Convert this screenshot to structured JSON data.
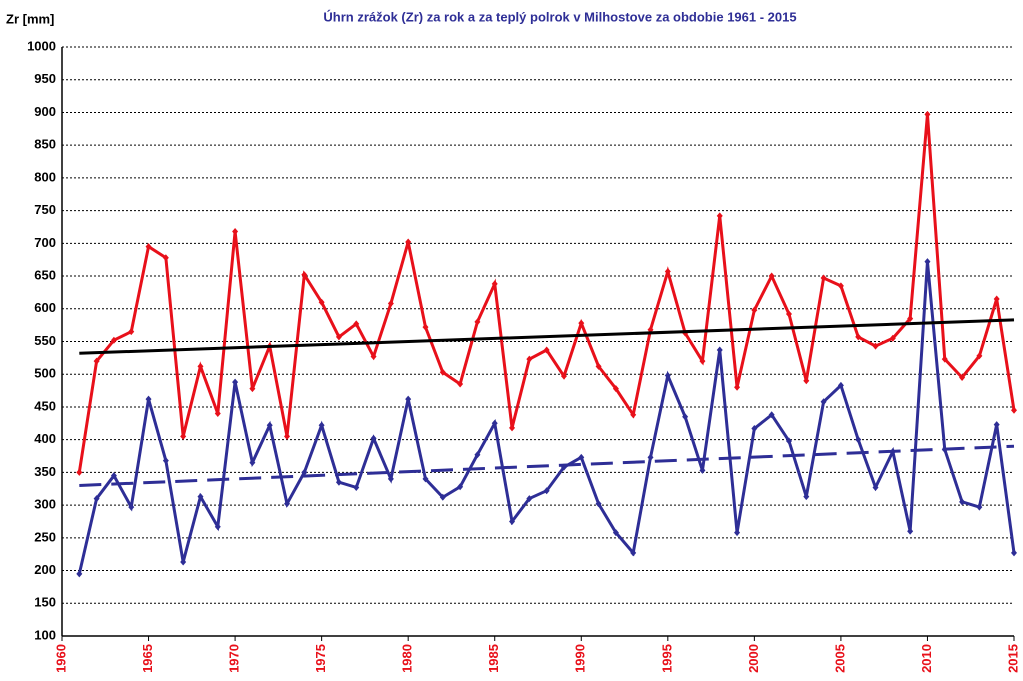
{
  "chart_data": {
    "type": "line",
    "title": "Úhrn zrážok (Zr) za rok a za teplý polrok v Milhostove za obdobie 1961 - 2015",
    "y_label": "Zr [mm]",
    "x": [
      1961,
      1962,
      1963,
      1964,
      1965,
      1966,
      1967,
      1968,
      1969,
      1970,
      1971,
      1972,
      1973,
      1974,
      1975,
      1976,
      1977,
      1978,
      1979,
      1980,
      1981,
      1982,
      1983,
      1984,
      1985,
      1986,
      1987,
      1988,
      1989,
      1990,
      1991,
      1992,
      1993,
      1994,
      1995,
      1996,
      1997,
      1998,
      1999,
      2000,
      2001,
      2002,
      2003,
      2004,
      2005,
      2006,
      2007,
      2008,
      2009,
      2010,
      2011,
      2012,
      2013,
      2014,
      2015
    ],
    "series": [
      {
        "color": "#e8101a",
        "marker": true,
        "dash": false,
        "values": [
          350,
          520,
          552,
          565,
          695,
          678,
          405,
          512,
          440,
          718,
          478,
          543,
          405,
          652,
          610,
          557,
          577,
          527,
          608,
          702,
          572,
          503,
          485,
          580,
          638,
          418,
          523,
          537,
          497,
          578,
          512,
          478,
          438,
          568,
          657,
          563,
          520,
          742,
          480,
          598,
          650,
          592,
          490,
          647,
          635,
          557,
          543,
          555,
          585,
          897,
          523,
          495,
          528,
          615,
          445
        ]
      },
      {
        "color": "#2e2e96",
        "marker": true,
        "dash": false,
        "values": [
          195,
          310,
          345,
          297,
          462,
          368,
          213,
          313,
          267,
          488,
          365,
          422,
          302,
          350,
          422,
          335,
          327,
          402,
          340,
          462,
          340,
          312,
          328,
          377,
          425,
          275,
          310,
          322,
          358,
          373,
          302,
          258,
          227,
          373,
          498,
          435,
          353,
          537,
          258,
          417,
          438,
          398,
          313,
          458,
          483,
          400,
          327,
          382,
          260,
          672,
          385,
          305,
          297,
          423,
          227
        ]
      },
      {
        "color": "#000000",
        "marker": false,
        "dash": false,
        "x": [
          1961,
          2015
        ],
        "values": [
          532,
          583
        ]
      },
      {
        "color": "#2e2e96",
        "marker": false,
        "dash": true,
        "x": [
          1961,
          2015
        ],
        "values": [
          330,
          390
        ]
      }
    ],
    "xlim": [
      1960,
      2015
    ],
    "xticks": [
      1960,
      1965,
      1970,
      1975,
      1980,
      1985,
      1990,
      1995,
      2000,
      2005,
      2010,
      2015
    ],
    "ylim": [
      100,
      1000
    ],
    "yticks": [
      100,
      150,
      200,
      250,
      300,
      350,
      400,
      450,
      500,
      550,
      600,
      650,
      700,
      750,
      800,
      850,
      900,
      950,
      1000
    ],
    "grid": true
  }
}
